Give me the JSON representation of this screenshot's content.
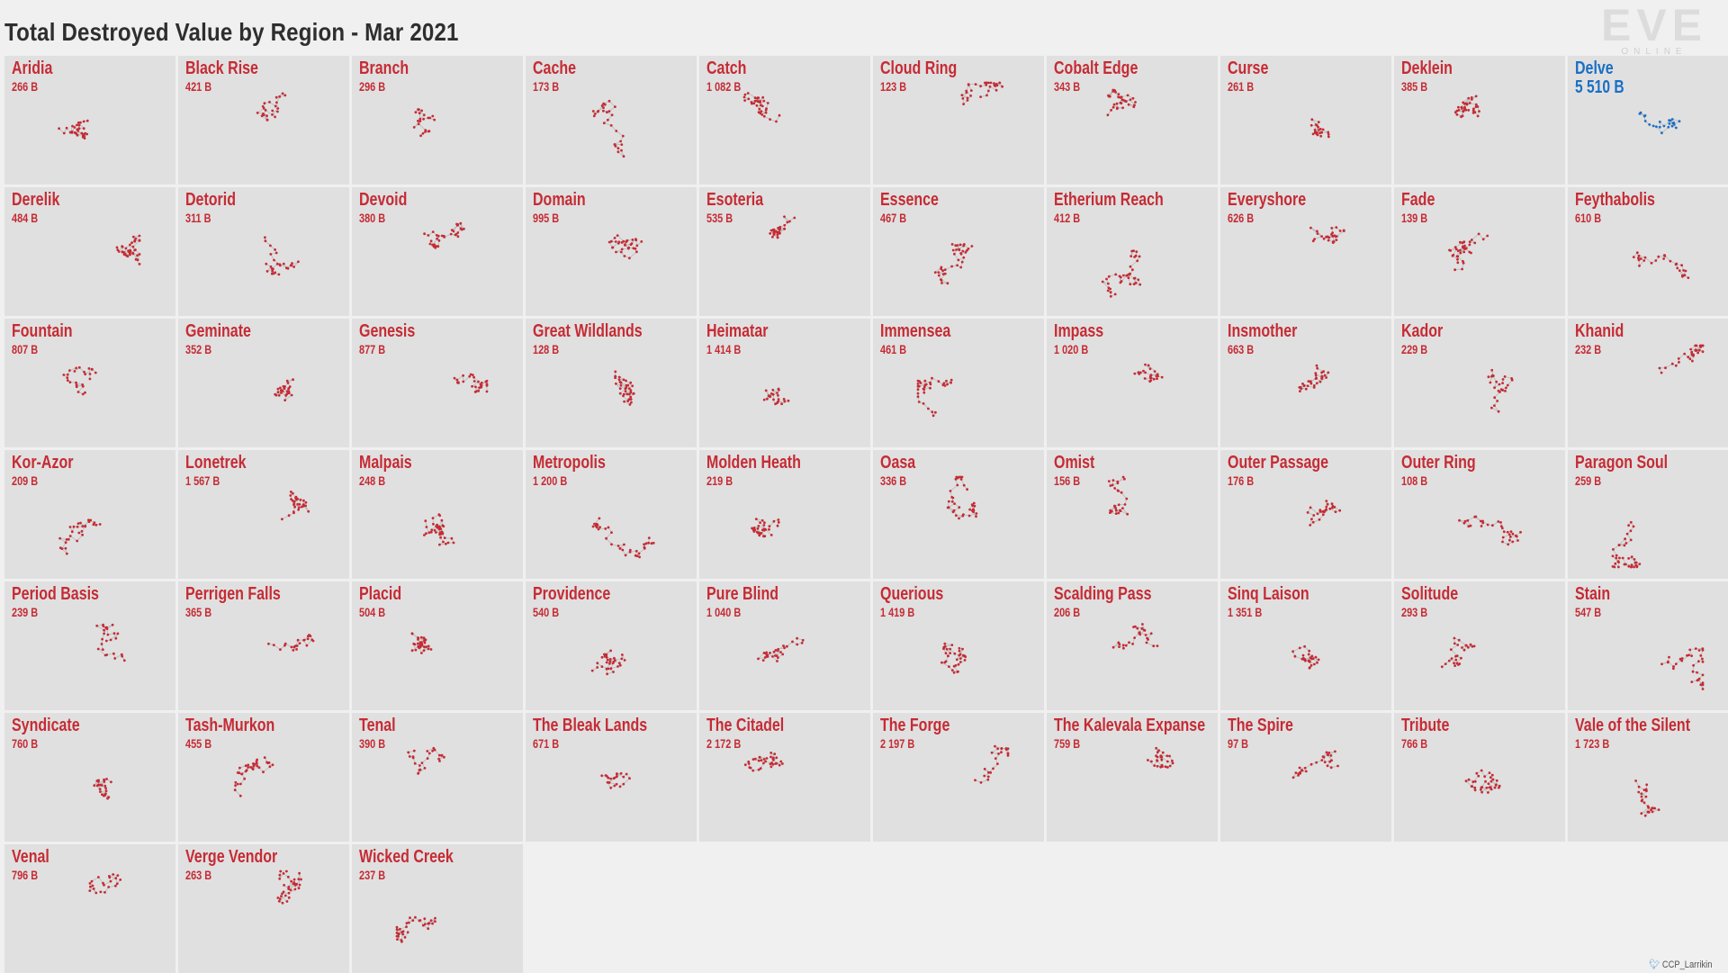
{
  "title": "Total Destroyed Value by Region - Mar 2021",
  "logo": {
    "main": "EVE",
    "sub": "ONLINE"
  },
  "credit": {
    "handle": "CCP_Larrikin",
    "icon": "twitter-bird-icon"
  },
  "colors": {
    "normal": "#c62b34",
    "highlight": "#1a6fc4",
    "tile": "#e0e0e0"
  },
  "chart_data": {
    "type": "table",
    "title": "Total Destroyed Value by Region - Mar 2021",
    "unit": "B",
    "regions": [
      {
        "name": "Aridia",
        "label": "266 B",
        "value": 266
      },
      {
        "name": "Black Rise",
        "label": "421 B",
        "value": 421
      },
      {
        "name": "Branch",
        "label": "296 B",
        "value": 296
      },
      {
        "name": "Cache",
        "label": "173 B",
        "value": 173
      },
      {
        "name": "Catch",
        "label": "1 082 B",
        "value": 1082
      },
      {
        "name": "Cloud Ring",
        "label": "123 B",
        "value": 123
      },
      {
        "name": "Cobalt Edge",
        "label": "343 B",
        "value": 343
      },
      {
        "name": "Curse",
        "label": "261 B",
        "value": 261
      },
      {
        "name": "Deklein",
        "label": "385 B",
        "value": 385
      },
      {
        "name": "Delve",
        "label": "5 510 B",
        "value": 5510,
        "highlight": true
      },
      {
        "name": "Derelik",
        "label": "484 B",
        "value": 484
      },
      {
        "name": "Detorid",
        "label": "311 B",
        "value": 311
      },
      {
        "name": "Devoid",
        "label": "380 B",
        "value": 380
      },
      {
        "name": "Domain",
        "label": "995 B",
        "value": 995
      },
      {
        "name": "Esoteria",
        "label": "535 B",
        "value": 535
      },
      {
        "name": "Essence",
        "label": "467 B",
        "value": 467
      },
      {
        "name": "Etherium Reach",
        "label": "412 B",
        "value": 412
      },
      {
        "name": "Everyshore",
        "label": "626 B",
        "value": 626
      },
      {
        "name": "Fade",
        "label": "139 B",
        "value": 139
      },
      {
        "name": "Feythabolis",
        "label": "610 B",
        "value": 610
      },
      {
        "name": "Fountain",
        "label": "807 B",
        "value": 807
      },
      {
        "name": "Geminate",
        "label": "352 B",
        "value": 352
      },
      {
        "name": "Genesis",
        "label": "877 B",
        "value": 877
      },
      {
        "name": "Great Wildlands",
        "label": "128 B",
        "value": 128
      },
      {
        "name": "Heimatar",
        "label": "1 414 B",
        "value": 1414
      },
      {
        "name": "Immensea",
        "label": "461 B",
        "value": 461
      },
      {
        "name": "Impass",
        "label": "1 020 B",
        "value": 1020
      },
      {
        "name": "Insmother",
        "label": "663 B",
        "value": 663
      },
      {
        "name": "Kador",
        "label": "229 B",
        "value": 229
      },
      {
        "name": "Khanid",
        "label": "232 B",
        "value": 232
      },
      {
        "name": "Kor-Azor",
        "label": "209 B",
        "value": 209
      },
      {
        "name": "Lonetrek",
        "label": "1 567 B",
        "value": 1567
      },
      {
        "name": "Malpais",
        "label": "248 B",
        "value": 248
      },
      {
        "name": "Metropolis",
        "label": "1 200 B",
        "value": 1200
      },
      {
        "name": "Molden Heath",
        "label": "219 B",
        "value": 219
      },
      {
        "name": "Oasa",
        "label": "336 B",
        "value": 336
      },
      {
        "name": "Omist",
        "label": "156 B",
        "value": 156
      },
      {
        "name": "Outer Passage",
        "label": "176 B",
        "value": 176
      },
      {
        "name": "Outer Ring",
        "label": "108 B",
        "value": 108
      },
      {
        "name": "Paragon Soul",
        "label": "259 B",
        "value": 259
      },
      {
        "name": "Period Basis",
        "label": "239 B",
        "value": 239
      },
      {
        "name": "Perrigen Falls",
        "label": "365 B",
        "value": 365
      },
      {
        "name": "Placid",
        "label": "504 B",
        "value": 504
      },
      {
        "name": "Providence",
        "label": "540 B",
        "value": 540
      },
      {
        "name": "Pure Blind",
        "label": "1 040 B",
        "value": 1040
      },
      {
        "name": "Querious",
        "label": "1 419 B",
        "value": 1419
      },
      {
        "name": "Scalding Pass",
        "label": "206 B",
        "value": 206
      },
      {
        "name": "Sinq Laison",
        "label": "1 351 B",
        "value": 1351
      },
      {
        "name": "Solitude",
        "label": "293 B",
        "value": 293
      },
      {
        "name": "Stain",
        "label": "547 B",
        "value": 547
      },
      {
        "name": "Syndicate",
        "label": "760 B",
        "value": 760
      },
      {
        "name": "Tash-Murkon",
        "label": "455 B",
        "value": 455
      },
      {
        "name": "Tenal",
        "label": "390 B",
        "value": 390
      },
      {
        "name": "The Bleak Lands",
        "label": "671 B",
        "value": 671
      },
      {
        "name": "The Citadel",
        "label": "2 172 B",
        "value": 2172
      },
      {
        "name": "The Forge",
        "label": "2 197 B",
        "value": 2197
      },
      {
        "name": "The Kalevala Expanse",
        "label": "759 B",
        "value": 759
      },
      {
        "name": "The Spire",
        "label": "97 B",
        "value": 97
      },
      {
        "name": "Tribute",
        "label": "766 B",
        "value": 766
      },
      {
        "name": "Vale of the Silent",
        "label": "1 723 B",
        "value": 1723
      },
      {
        "name": "Venal",
        "label": "796 B",
        "value": 796
      },
      {
        "name": "Verge Vendor",
        "label": "263 B",
        "value": 263
      },
      {
        "name": "Wicked Creek",
        "label": "237 B",
        "value": 237
      }
    ]
  }
}
